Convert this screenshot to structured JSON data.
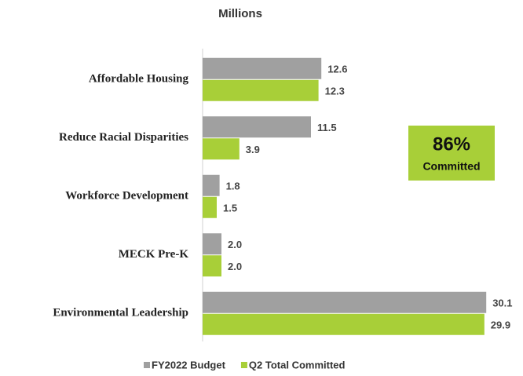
{
  "chart_data": {
    "type": "bar",
    "orientation": "horizontal",
    "title": "Millions",
    "categories": [
      "Affordable Housing",
      "Reduce Racial Disparities",
      "Workforce Development",
      "MECK Pre-K",
      "Environmental Leadership"
    ],
    "series": [
      {
        "name": "FY2022 Budget",
        "color": "#a0a0a0",
        "values": [
          12.6,
          11.5,
          1.8,
          2.0,
          30.1
        ],
        "value_labels": [
          "12.6",
          "11.5",
          "1.8",
          "2.0",
          "30.1"
        ]
      },
      {
        "name": "Q2 Total Committed",
        "color": "#a8cf38",
        "values": [
          12.3,
          3.9,
          1.5,
          2.0,
          29.9
        ],
        "value_labels": [
          "12.3",
          "3.9",
          "1.5",
          "2.0",
          "29.9"
        ]
      }
    ],
    "xlim": [
      0,
      32
    ],
    "annotation": {
      "value": "86%",
      "text": "Committed",
      "color": "#a8cf38"
    },
    "legend": "bottom"
  }
}
